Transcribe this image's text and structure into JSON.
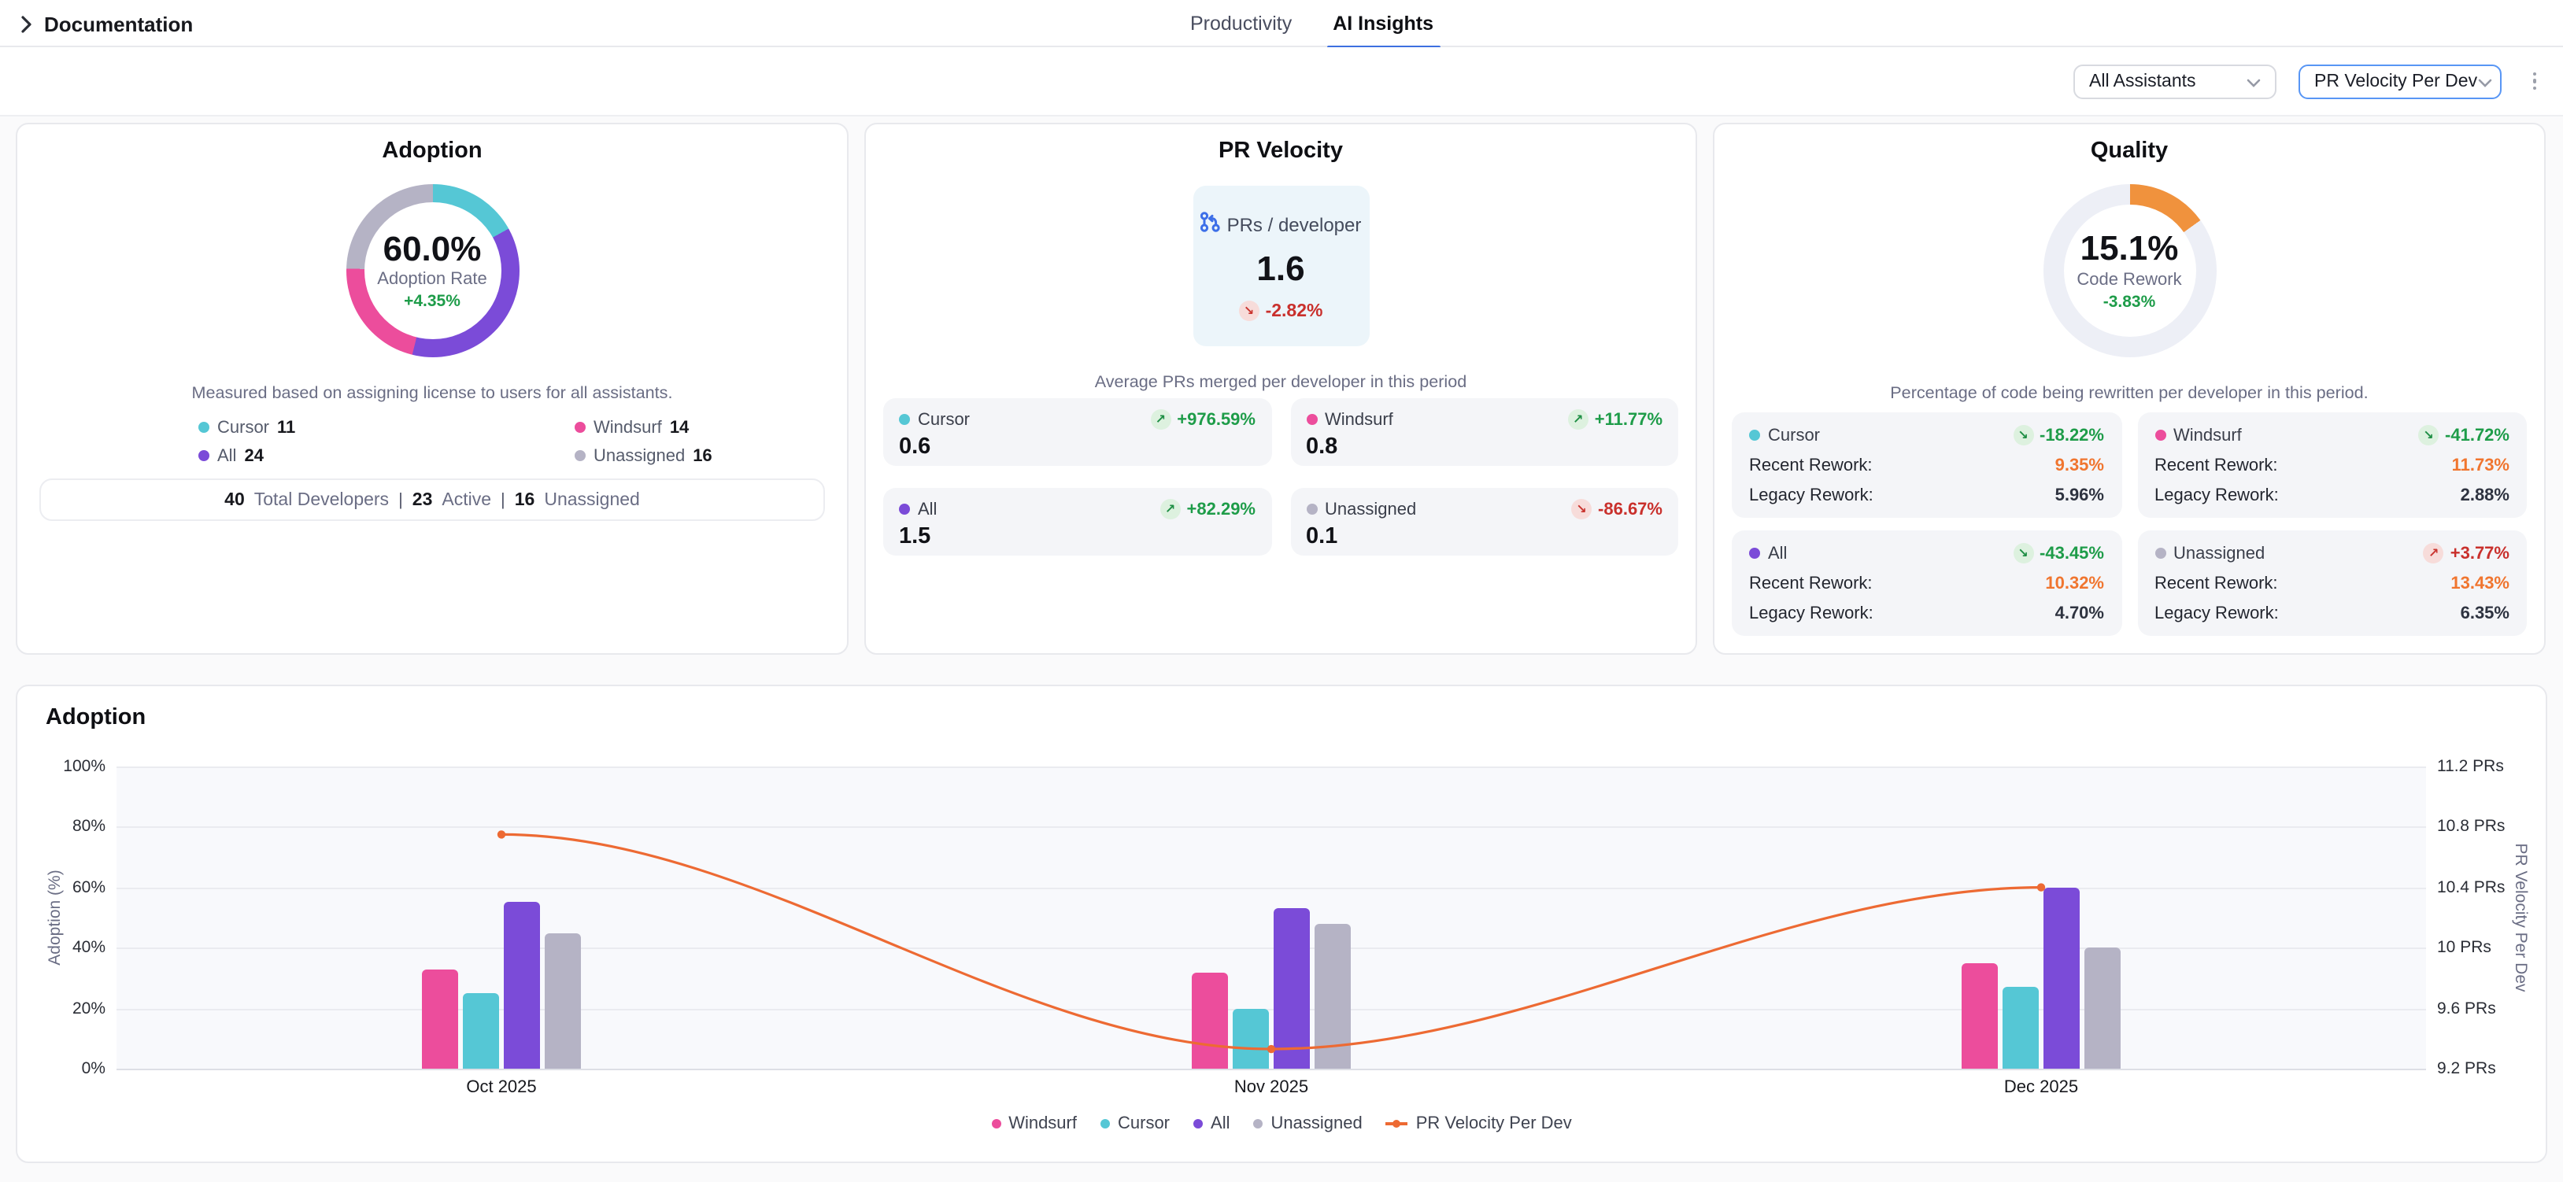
{
  "header": {
    "breadcrumb": "Documentation",
    "tabs": [
      {
        "label": "Productivity",
        "active": false
      },
      {
        "label": "AI Insights",
        "active": true
      }
    ]
  },
  "toolbar": {
    "assistants_dropdown": "All Assistants",
    "metric_dropdown": "PR Velocity Per Dev"
  },
  "colors": {
    "accent_blue": "#3D6FE0",
    "focus_border": "#5896F5",
    "positive_green": "#1E9C49",
    "negative_red": "#C9302C",
    "rework_orange": "#F0752F",
    "windsurf": "#EC4D9C",
    "cursor": "#55C7D5",
    "all": "#7B4BD8",
    "unassigned": "#B5B3C5",
    "velocity_line": "#ED6A33",
    "quality_orange": "#F0923D"
  },
  "adoption_card": {
    "title": "Adoption",
    "rate": "60.0%",
    "rate_label": "Adoption Rate",
    "rate_change": "+4.35%",
    "subtitle": "Measured based on assigning license to users for all assistants.",
    "donut": {
      "segments": [
        {
          "label": "Cursor",
          "value": 11,
          "color": "#55C7D5"
        },
        {
          "label": "All",
          "value": 24,
          "color": "#7B4BD8"
        },
        {
          "label": "Windsurf",
          "value": 14,
          "color": "#EC4D9C"
        },
        {
          "label": "Unassigned",
          "value": 16,
          "color": "#B5B3C5"
        }
      ]
    },
    "legend": [
      {
        "label": "Cursor",
        "value": "11",
        "color": "#55C7D5"
      },
      {
        "label": "Windsurf",
        "value": "14",
        "color": "#EC4D9C"
      },
      {
        "label": "All",
        "value": "24",
        "color": "#7B4BD8"
      },
      {
        "label": "Unassigned",
        "value": "16",
        "color": "#B5B3C5"
      }
    ],
    "footer": {
      "total_value": "40",
      "total_label": "Total Developers",
      "active_value": "23",
      "active_label": "Active",
      "unassigned_value": "16",
      "unassigned_label": "Unassigned",
      "separator": "|"
    }
  },
  "pr_velocity_card": {
    "title": "PR Velocity",
    "metric_label": "PRs / developer",
    "metric_value": "1.6",
    "metric_change": "-2.82%",
    "metric_arrow": "↘",
    "subtitle": "Average PRs merged per developer in this period",
    "tiles": [
      {
        "label": "Cursor",
        "color": "#55C7D5",
        "change": "+976.59%",
        "arrow": "↗",
        "value": "0.6"
      },
      {
        "label": "Windsurf",
        "color": "#EC4D9C",
        "change": "+11.77%",
        "arrow": "↗",
        "value": "0.8"
      },
      {
        "label": "All",
        "color": "#7B4BD8",
        "change": "+82.29%",
        "arrow": "↗",
        "value": "1.5"
      },
      {
        "label": "Unassigned",
        "color": "#B5B3C5",
        "change": "-86.67%",
        "arrow": "↘",
        "value": "0.1"
      }
    ]
  },
  "quality_card": {
    "title": "Quality",
    "metric_value": "15.1%",
    "metric_label": "Code Rework",
    "metric_change": "-3.83%",
    "subtitle": "Percentage of code being rewritten per developer in this period.",
    "donut": {
      "segments": [
        {
          "label": "Code Rework",
          "value": 15.1,
          "color": "#F0923D"
        },
        {
          "label": "Remaining",
          "value": 84.9,
          "color": "#EDEFF6"
        }
      ]
    },
    "tiles": [
      {
        "label": "Cursor",
        "color": "#55C7D5",
        "change": "-18.22%",
        "arrow": "↘",
        "recent_label": "Recent Rework:",
        "recent_value": "9.35%",
        "legacy_label": "Legacy Rework:",
        "legacy_value": "5.96%"
      },
      {
        "label": "Windsurf",
        "color": "#EC4D9C",
        "change": "-41.72%",
        "arrow": "↘",
        "recent_label": "Recent Rework:",
        "recent_value": "11.73%",
        "legacy_label": "Legacy Rework:",
        "legacy_value": "2.88%"
      },
      {
        "label": "All",
        "color": "#7B4BD8",
        "change": "-43.45%",
        "arrow": "↘",
        "recent_label": "Recent Rework:",
        "recent_value": "10.32%",
        "legacy_label": "Legacy Rework:",
        "legacy_value": "4.70%"
      },
      {
        "label": "Unassigned",
        "color": "#B5B3C5",
        "change": "+3.77%",
        "arrow": "↗",
        "recent_label": "Recent Rework:",
        "recent_value": "13.43%",
        "legacy_label": "Legacy Rework:",
        "legacy_value": "6.35%"
      }
    ]
  },
  "chart_data": {
    "type": "bar",
    "title": "Adoption",
    "categories": [
      "Oct 2025",
      "Nov 2025",
      "Dec 2025"
    ],
    "series": [
      {
        "name": "Windsurf",
        "type": "bar",
        "color": "#EC4D9C",
        "values": [
          33,
          32,
          35
        ]
      },
      {
        "name": "Cursor",
        "type": "bar",
        "color": "#55C7D5",
        "values": [
          25,
          20,
          27
        ]
      },
      {
        "name": "All",
        "type": "bar",
        "color": "#7B4BD8",
        "values": [
          55,
          53,
          60
        ]
      },
      {
        "name": "Unassigned",
        "type": "bar",
        "color": "#B5B3C5",
        "values": [
          45,
          48,
          40
        ]
      },
      {
        "name": "PR Velocity Per Dev",
        "type": "line",
        "color": "#ED6A33",
        "axis": "right",
        "values": [
          10.75,
          9.33,
          10.4
        ]
      }
    ],
    "left_axis": {
      "label": "Adoption (%)",
      "min": 0,
      "max": 100,
      "ticks": [
        "100%",
        "80%",
        "60%",
        "40%",
        "20%",
        "0%"
      ]
    },
    "right_axis": {
      "label": "PR Velocity Per Dev",
      "min": 9.2,
      "max": 11.2,
      "ticks": [
        "11.2 PRs",
        "10.8 PRs",
        "10.4 PRs",
        "10 PRs",
        "9.6 PRs",
        "9.2 PRs"
      ]
    },
    "grid": true,
    "legend_position": "bottom"
  }
}
